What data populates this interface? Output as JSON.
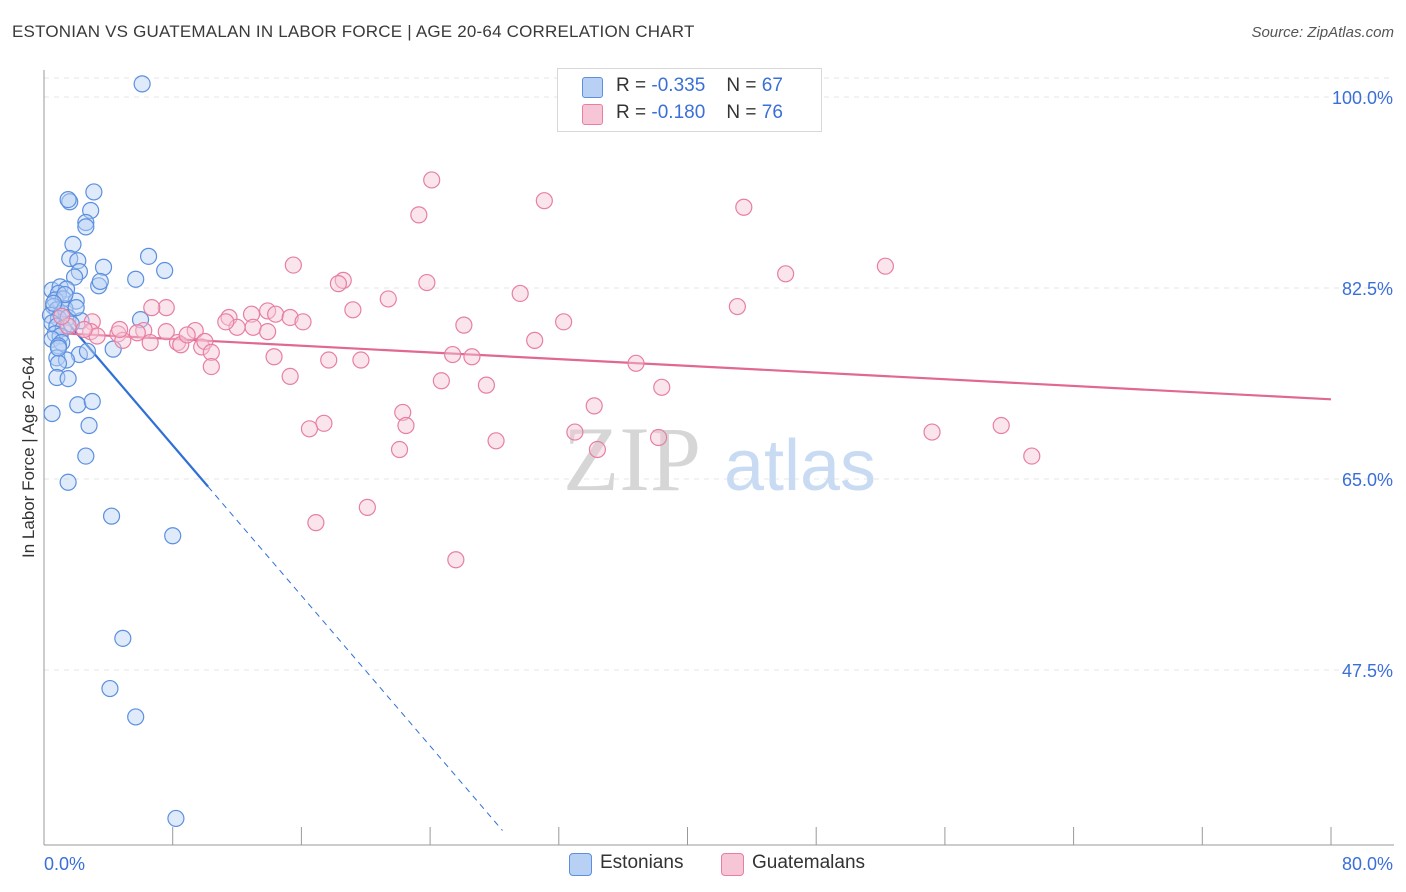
{
  "header": {
    "title": "ESTONIAN VS GUATEMALAN IN LABOR FORCE | AGE 20-64 CORRELATION CHART",
    "source": "Source: ZipAtlas.com"
  },
  "colors": {
    "blue": "#5b8fe0",
    "blue_fill": "#b8d0f4",
    "blue_line": "#2f6fd6",
    "pink": "#e77fa3",
    "pink_fill": "#f6c6d6",
    "pink_line": "#e06892",
    "axis_text": "#3a6fd8",
    "grid": "#e4e4e4"
  },
  "legend": {
    "estonians": {
      "r_label": "R =",
      "r_value": "-0.335",
      "n_label": "N =",
      "n_value": "67"
    },
    "guatemalans": {
      "r_label": "R =",
      "r_value": "-0.180",
      "n_label": "N =",
      "n_value": "76"
    }
  },
  "bottom_legend": {
    "estonians": "Estonians",
    "guatemalans": "Guatemalans"
  },
  "watermark": {
    "zip": "ZIP",
    "atlas": "atlas"
  },
  "chart_data": {
    "type": "scatter",
    "title": "ESTONIAN VS GUATEMALAN IN LABOR FORCE | AGE 20-64 CORRELATION CHART",
    "xlabel": "",
    "ylabel": "In Labor Force | Age 20-64",
    "xlim": [
      0,
      80
    ],
    "ylim": [
      30,
      102
    ],
    "x_tick_labels": [
      "0.0%",
      "80.0%"
    ],
    "y_ticks": [
      47.5,
      65.0,
      82.5,
      100.0
    ],
    "y_tick_labels": [
      "47.5%",
      "65.0%",
      "82.5%",
      "100.0%"
    ],
    "series": [
      {
        "name": "Estonians",
        "color": "blue",
        "r": -0.335,
        "n": 67,
        "trend": {
          "x0": 0.5,
          "y0": 81.0,
          "x1": 10.2,
          "y1": 64.3,
          "dash_to_x": 28.5
        },
        "points": [
          [
            6.1,
            101.2
          ],
          [
            3.1,
            91.3
          ],
          [
            1.6,
            90.4
          ],
          [
            1.5,
            90.6
          ],
          [
            2.9,
            89.6
          ],
          [
            2.6,
            88.5
          ],
          [
            2.6,
            88.1
          ],
          [
            1.8,
            86.5
          ],
          [
            1.6,
            85.2
          ],
          [
            2.1,
            85.0
          ],
          [
            6.5,
            85.4
          ],
          [
            3.7,
            84.4
          ],
          [
            7.5,
            84.1
          ],
          [
            2.2,
            84.0
          ],
          [
            1.9,
            83.5
          ],
          [
            5.7,
            83.3
          ],
          [
            3.4,
            82.7
          ],
          [
            3.5,
            83.1
          ],
          [
            0.5,
            82.3
          ],
          [
            1.0,
            82.6
          ],
          [
            1.4,
            82.4
          ],
          [
            0.9,
            82.0
          ],
          [
            0.7,
            81.4
          ],
          [
            1.2,
            81.5
          ],
          [
            2.0,
            81.3
          ],
          [
            0.6,
            80.8
          ],
          [
            0.8,
            80.5
          ],
          [
            1.1,
            80.2
          ],
          [
            1.3,
            80.6
          ],
          [
            0.4,
            80.0
          ],
          [
            0.9,
            79.7
          ],
          [
            1.5,
            79.8
          ],
          [
            2.3,
            79.5
          ],
          [
            0.5,
            79.3
          ],
          [
            0.8,
            79.0
          ],
          [
            1.2,
            78.8
          ],
          [
            0.7,
            78.3
          ],
          [
            1.0,
            78.1
          ],
          [
            0.5,
            77.8
          ],
          [
            1.1,
            77.5
          ],
          [
            0.9,
            77.2
          ],
          [
            6.0,
            79.6
          ],
          [
            2.2,
            76.4
          ],
          [
            0.8,
            76.1
          ],
          [
            1.4,
            75.9
          ],
          [
            4.3,
            76.9
          ],
          [
            0.9,
            75.6
          ],
          [
            2.7,
            76.7
          ],
          [
            0.8,
            74.3
          ],
          [
            1.5,
            74.2
          ],
          [
            2.1,
            71.8
          ],
          [
            3.0,
            72.1
          ],
          [
            0.5,
            71.0
          ],
          [
            2.8,
            69.9
          ],
          [
            2.6,
            67.1
          ],
          [
            1.5,
            64.7
          ],
          [
            4.2,
            61.6
          ],
          [
            8.0,
            59.8
          ],
          [
            4.9,
            50.4
          ],
          [
            4.1,
            45.8
          ],
          [
            5.7,
            43.2
          ],
          [
            8.2,
            33.9
          ],
          [
            1.3,
            81.9
          ],
          [
            0.6,
            81.1
          ],
          [
            2.0,
            80.7
          ],
          [
            1.7,
            79.2
          ],
          [
            0.9,
            77.0
          ]
        ]
      },
      {
        "name": "Guatemalans",
        "color": "pink",
        "r": -0.18,
        "n": 76,
        "trend": {
          "x0": 0.5,
          "y0": 78.4,
          "x1": 80.0,
          "y1": 72.3
        },
        "points": [
          [
            24.1,
            92.4
          ],
          [
            31.1,
            90.5
          ],
          [
            23.3,
            89.2
          ],
          [
            43.5,
            89.9
          ],
          [
            52.3,
            84.5
          ],
          [
            15.5,
            84.6
          ],
          [
            46.1,
            83.8
          ],
          [
            18.6,
            83.2
          ],
          [
            23.8,
            83.0
          ],
          [
            18.3,
            82.9
          ],
          [
            29.6,
            82.0
          ],
          [
            21.4,
            81.5
          ],
          [
            43.1,
            80.8
          ],
          [
            7.6,
            80.7
          ],
          [
            19.2,
            80.5
          ],
          [
            13.9,
            80.4
          ],
          [
            12.9,
            80.1
          ],
          [
            14.4,
            80.1
          ],
          [
            11.5,
            79.8
          ],
          [
            15.3,
            79.8
          ],
          [
            16.1,
            79.4
          ],
          [
            32.3,
            79.4
          ],
          [
            26.1,
            79.1
          ],
          [
            12.0,
            78.9
          ],
          [
            13.0,
            78.9
          ],
          [
            13.9,
            78.5
          ],
          [
            9.4,
            78.6
          ],
          [
            7.6,
            78.5
          ],
          [
            6.2,
            78.6
          ],
          [
            5.8,
            78.4
          ],
          [
            4.6,
            78.3
          ],
          [
            3.0,
            79.4
          ],
          [
            1.5,
            79.0
          ],
          [
            2.9,
            78.5
          ],
          [
            3.3,
            78.1
          ],
          [
            4.9,
            77.7
          ],
          [
            6.6,
            77.5
          ],
          [
            8.3,
            77.5
          ],
          [
            8.5,
            77.3
          ],
          [
            9.8,
            77.1
          ],
          [
            10.0,
            77.6
          ],
          [
            30.5,
            77.7
          ],
          [
            10.4,
            76.6
          ],
          [
            14.3,
            76.2
          ],
          [
            17.7,
            75.9
          ],
          [
            19.7,
            75.9
          ],
          [
            25.4,
            76.4
          ],
          [
            26.6,
            76.2
          ],
          [
            36.8,
            75.6
          ],
          [
            10.4,
            75.3
          ],
          [
            15.3,
            74.4
          ],
          [
            24.7,
            74.0
          ],
          [
            27.5,
            73.6
          ],
          [
            38.4,
            73.4
          ],
          [
            34.2,
            71.7
          ],
          [
            22.3,
            71.1
          ],
          [
            22.5,
            69.9
          ],
          [
            17.4,
            70.1
          ],
          [
            16.5,
            69.6
          ],
          [
            33.0,
            69.3
          ],
          [
            38.2,
            68.8
          ],
          [
            28.1,
            68.5
          ],
          [
            55.2,
            69.3
          ],
          [
            59.5,
            69.9
          ],
          [
            61.4,
            67.1
          ],
          [
            22.1,
            67.7
          ],
          [
            34.4,
            67.7
          ],
          [
            20.1,
            62.4
          ],
          [
            16.9,
            61.0
          ],
          [
            25.6,
            57.6
          ],
          [
            6.7,
            80.7
          ],
          [
            1.1,
            79.9
          ],
          [
            2.5,
            78.7
          ],
          [
            11.3,
            79.4
          ],
          [
            4.7,
            78.7
          ],
          [
            8.9,
            78.2
          ]
        ]
      }
    ]
  }
}
